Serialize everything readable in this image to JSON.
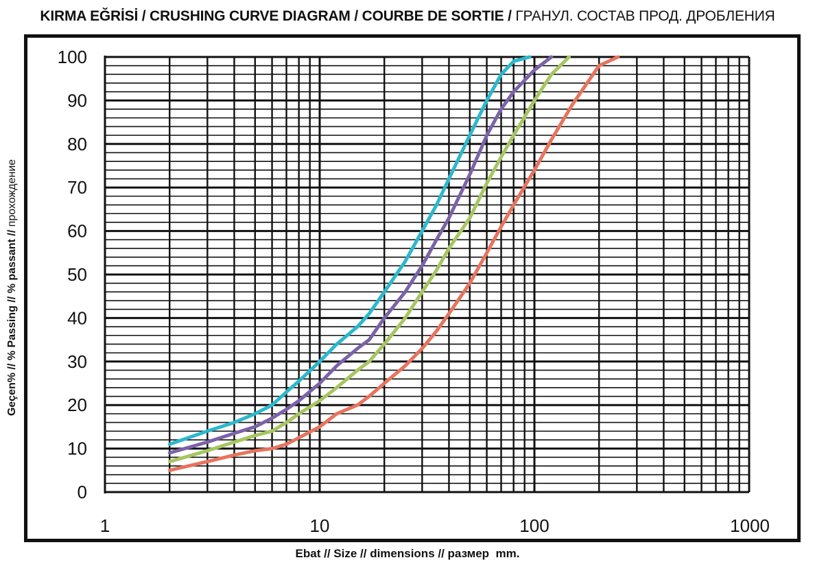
{
  "title": {
    "bold": "KIRMA EĞRİSİ / CRUSHING CURVE DIAGRAM / COURBE DE SORTIE /",
    "normal": " ГРАНУЛ. СОСТАВ ПРОД. ДРОБЛЕНИЯ"
  },
  "ylabel": {
    "bold": "Geçen% // % Passing // % passant //",
    "normal": " прохождение"
  },
  "chart_data": {
    "type": "line",
    "title": "KIRMA EĞRİSİ / CRUSHING CURVE DIAGRAM / COURBE DE SORTIE / ГРАНУЛ. СОСТАВ ПРОД. ДРОБЛЕНИЯ",
    "xlabel": "Ebat // Size // dimensions // размер  mm.",
    "ylabel": "Geçen% // % Passing // % passant // прохождение",
    "x_scale": "log",
    "xlim": [
      1,
      1000
    ],
    "ylim": [
      0,
      100
    ],
    "x_ticks": [
      "1",
      "10",
      "100",
      "1000"
    ],
    "y_ticks": [
      "0",
      "10",
      "20",
      "30",
      "40",
      "50",
      "60",
      "70",
      "80",
      "90",
      "100"
    ],
    "grid": true,
    "legend": "none",
    "series": [
      {
        "color": "#2cb8cc",
        "x": [
          2,
          3,
          4,
          5,
          6,
          7,
          8,
          10,
          12,
          15,
          17,
          20,
          25,
          30,
          35,
          40,
          50,
          60,
          70,
          80,
          95
        ],
        "y": [
          11,
          14,
          16,
          18,
          20,
          23,
          25.5,
          30,
          34,
          38,
          41,
          46,
          53,
          60,
          66,
          72,
          82,
          90,
          96,
          99,
          100
        ]
      },
      {
        "color": "#7b62a8",
        "x": [
          2,
          3,
          4,
          5,
          6,
          7,
          8,
          10,
          12,
          15,
          17,
          20,
          25,
          30,
          35,
          40,
          50,
          60,
          70,
          80,
          100,
          120
        ],
        "y": [
          9,
          11.5,
          13.5,
          15,
          17,
          19,
          21,
          25,
          29,
          33,
          35,
          40,
          46,
          52,
          58,
          63,
          73,
          82,
          88,
          92,
          97,
          100
        ]
      },
      {
        "color": "#a7c561",
        "x": [
          2,
          3,
          4,
          5,
          6,
          7,
          8,
          10,
          12,
          15,
          17,
          20,
          25,
          30,
          35,
          40,
          50,
          60,
          70,
          80,
          100,
          120,
          145
        ],
        "y": [
          7,
          9.5,
          11.5,
          13,
          14,
          16,
          18,
          21,
          24,
          28,
          30,
          34,
          40,
          46,
          51,
          56,
          63,
          71,
          77,
          82,
          90,
          96,
          100
        ]
      },
      {
        "color": "#e8735e",
        "x": [
          2,
          3,
          4,
          5,
          6,
          7,
          8,
          10,
          12,
          15,
          17,
          20,
          25,
          30,
          35,
          40,
          50,
          60,
          70,
          80,
          100,
          120,
          150,
          200,
          245
        ],
        "y": [
          5,
          7,
          8.5,
          9.5,
          10,
          11,
          12.5,
          15,
          18,
          20,
          22,
          25,
          29,
          33,
          37,
          41,
          48,
          55,
          61,
          66,
          74,
          81,
          89,
          98,
          100
        ]
      }
    ]
  }
}
